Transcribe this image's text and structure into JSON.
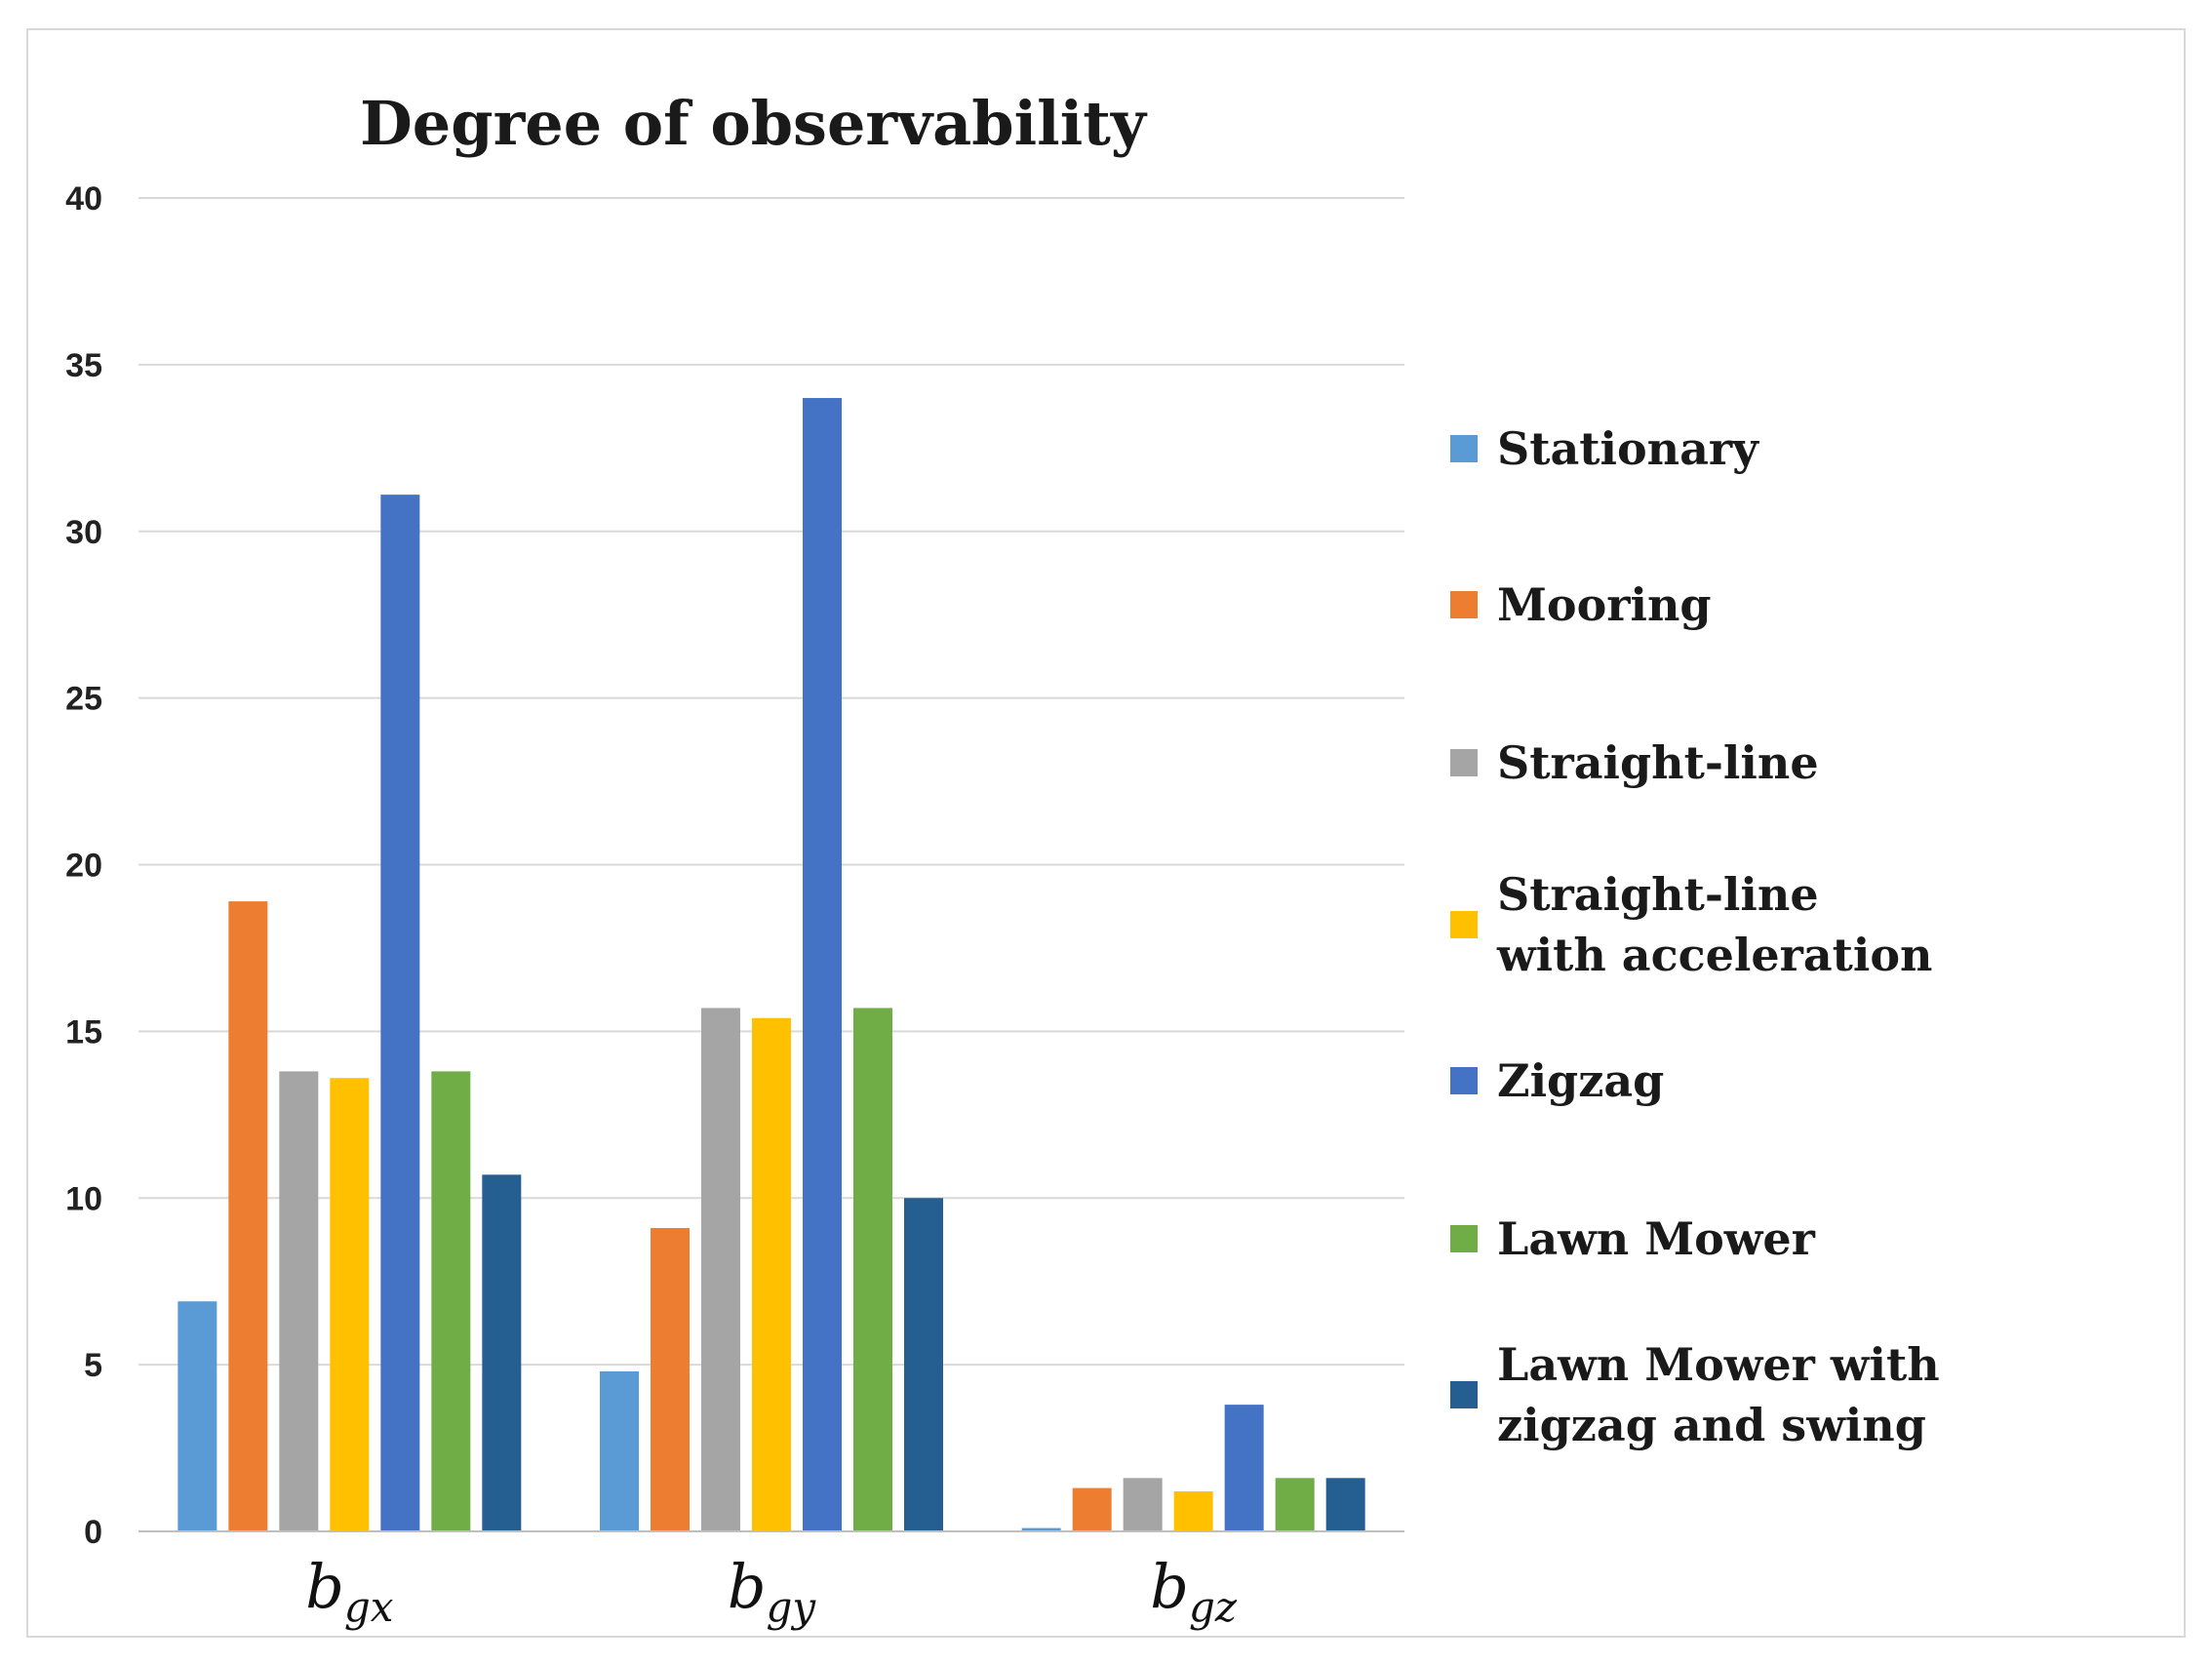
{
  "chart_data": {
    "type": "bar",
    "title": "Degree of observability",
    "xlabel": "",
    "ylabel": "",
    "ylim": [
      0,
      40
    ],
    "yticks": [
      0,
      5,
      10,
      15,
      20,
      25,
      30,
      35,
      40
    ],
    "grid": true,
    "legend_position": "right",
    "categories": [
      {
        "base": "b",
        "sub": "gx"
      },
      {
        "base": "b",
        "sub": "gy"
      },
      {
        "base": "b",
        "sub": "gz"
      }
    ],
    "series": [
      {
        "name": [
          "Stationary"
        ],
        "color": "#5b9bd5",
        "values": [
          6.9,
          4.8,
          0.1
        ]
      },
      {
        "name": [
          "Mooring"
        ],
        "color": "#ed7d31",
        "values": [
          18.9,
          9.1,
          1.3
        ]
      },
      {
        "name": [
          "Straight-line"
        ],
        "color": "#a5a5a5",
        "values": [
          13.8,
          15.7,
          1.6
        ]
      },
      {
        "name": [
          "Straight-line",
          "with acceleration"
        ],
        "color": "#ffc000",
        "values": [
          13.6,
          15.4,
          1.2
        ]
      },
      {
        "name": [
          "Zigzag"
        ],
        "color": "#4472c4",
        "values": [
          31.1,
          34.0,
          3.8
        ]
      },
      {
        "name": [
          "Lawn Mower"
        ],
        "color": "#70ad47",
        "values": [
          13.8,
          15.7,
          1.6
        ]
      },
      {
        "name": [
          "Lawn Mower with",
          "zigzag and swing"
        ],
        "color": "#255e91",
        "values": [
          10.7,
          10.0,
          1.6
        ]
      }
    ]
  }
}
